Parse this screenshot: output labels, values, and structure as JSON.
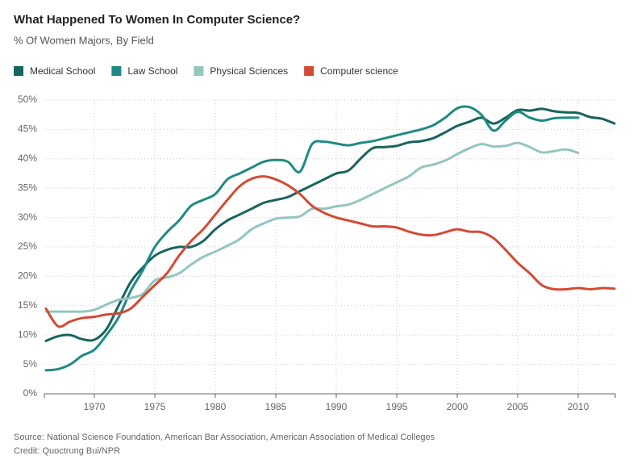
{
  "chart_data": {
    "type": "line",
    "title": "What Happened To Women In Computer Science?",
    "subtitle": "% Of Women Majors, By Field",
    "source": "Source: National Science Foundation, American Bar Association, American Association of Medical Colleges",
    "credit": "Credit: Quoctrung Bui/NPR",
    "x": [
      1966,
      1967,
      1968,
      1969,
      1970,
      1971,
      1972,
      1973,
      1974,
      1975,
      1976,
      1977,
      1978,
      1979,
      1980,
      1981,
      1982,
      1983,
      1984,
      1985,
      1986,
      1987,
      1988,
      1989,
      1990,
      1991,
      1992,
      1993,
      1994,
      1995,
      1996,
      1997,
      1998,
      1999,
      2000,
      2001,
      2002,
      2003,
      2004,
      2005,
      2006,
      2007,
      2008,
      2009,
      2010,
      2011,
      2012,
      2013
    ],
    "series": [
      {
        "name": "Medical School",
        "color": "#17645e",
        "values": [
          9,
          9.8,
          10,
          9.3,
          9.2,
          11,
          15,
          19,
          21.5,
          23.5,
          24.5,
          25,
          25,
          26,
          28,
          29.5,
          30.5,
          31.5,
          32.5,
          33,
          33.5,
          34.5,
          35.5,
          36.5,
          37.5,
          38,
          40,
          41.8,
          42,
          42.2,
          42.8,
          43,
          43.5,
          44.5,
          45.6,
          46.3,
          47,
          46,
          47,
          48.3,
          48.2,
          48.5,
          48.1,
          47.9,
          47.8,
          47.1,
          46.8,
          46
        ]
      },
      {
        "name": "Law School",
        "color": "#1f8a83",
        "values": [
          4,
          4.2,
          5,
          6.5,
          7.5,
          10,
          13,
          17.5,
          21,
          25,
          27.5,
          29.5,
          32,
          33,
          34,
          36.5,
          37.5,
          38.5,
          39.5,
          39.8,
          39.5,
          37.8,
          42.5,
          42.9,
          42.6,
          42.3,
          42.7,
          43,
          43.5,
          44,
          44.5,
          45,
          45.7,
          47,
          48.6,
          48.8,
          47.5,
          44.8,
          46.5,
          48,
          47,
          46.5,
          46.9,
          47,
          47,
          null,
          null,
          null
        ]
      },
      {
        "name": "Physical Sciences",
        "color": "#93c5c1",
        "values": [
          14,
          14,
          14,
          14,
          14.3,
          15.2,
          16,
          16.3,
          17,
          19.3,
          19.8,
          20.5,
          22,
          23.3,
          24.2,
          25.2,
          26.3,
          28,
          29,
          29.8,
          30,
          30.2,
          31.5,
          31.5,
          31.9,
          32.2,
          33,
          34,
          35,
          36,
          37,
          38.5,
          39,
          39.7,
          40.8,
          41.8,
          42.5,
          42.1,
          42.2,
          42.7,
          42,
          41.1,
          41.3,
          41.6,
          41,
          null,
          null,
          null
        ]
      },
      {
        "name": "Computer science",
        "color": "#d24b35",
        "values": [
          14.5,
          11.5,
          12.3,
          12.9,
          13.1,
          13.5,
          13.7,
          14.5,
          16.5,
          18.5,
          20.5,
          23.5,
          26,
          28,
          30.5,
          33,
          35.3,
          36.6,
          37,
          36.5,
          35.5,
          34,
          32,
          30.8,
          30,
          29.5,
          29,
          28.5,
          28.5,
          28.3,
          27.6,
          27.1,
          27,
          27.5,
          28,
          27.6,
          27.5,
          26.5,
          24.5,
          22.3,
          20.5,
          18.5,
          17.8,
          17.8,
          18,
          17.8,
          18,
          17.9
        ]
      }
    ],
    "xlim": [
      1966,
      2013
    ],
    "xticks": [
      1970,
      1975,
      1980,
      1985,
      1990,
      1995,
      2000,
      2005,
      2010
    ],
    "ylim": [
      0,
      50
    ],
    "yticks": [
      {
        "value": 0,
        "label": "0%"
      },
      {
        "value": 5,
        "label": "5%"
      },
      {
        "value": 10,
        "label": "10%"
      },
      {
        "value": 15,
        "label": "15%"
      },
      {
        "value": 20,
        "label": "20%"
      },
      {
        "value": 25,
        "label": "25%"
      },
      {
        "value": 30,
        "label": "30%"
      },
      {
        "value": 35,
        "label": "35%"
      },
      {
        "value": 40,
        "label": "40%"
      },
      {
        "value": 45,
        "label": "45%"
      },
      {
        "value": 50,
        "label": "50%"
      }
    ],
    "grid": true
  }
}
